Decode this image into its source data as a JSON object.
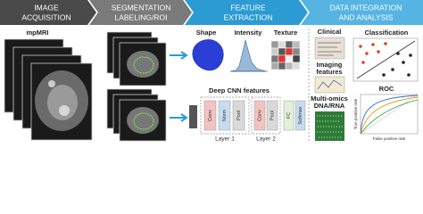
{
  "header": {
    "steps": [
      {
        "lines": [
          "IMAGE",
          "ACQUISITION"
        ]
      },
      {
        "lines": [
          "SEGMENTATION",
          "LABELING/ROI"
        ]
      },
      {
        "lines": [
          "FEATURE",
          "EXTRACTION"
        ]
      },
      {
        "lines": [
          "DATA INTEGRATION",
          "AND ANALYSIS"
        ]
      }
    ]
  },
  "acquisition": {
    "label": "mpMRI"
  },
  "features": {
    "handcrafted": [
      "Shape",
      "Intensity",
      "Texture"
    ],
    "cnn": {
      "title": "Deep CNN features",
      "layer1": {
        "label": "Layer 1",
        "blocks": [
          "Conv",
          "Norm",
          "Pool"
        ]
      },
      "layer2": {
        "label": "Layer 2",
        "blocks": [
          "Conv",
          "Pool"
        ]
      },
      "head": [
        "FC",
        "Softmax"
      ]
    }
  },
  "integration": {
    "inputs": [
      {
        "lines": [
          "Clinical"
        ]
      },
      {
        "lines": [
          "Imaging",
          "features"
        ]
      },
      {
        "lines": [
          "Multi-omics",
          "DNA/RNA"
        ]
      }
    ]
  },
  "analysis": {
    "classification": "Classification",
    "roc": {
      "title": "ROC",
      "x_label": "False positive rate",
      "y_label": "True positive rate"
    }
  }
}
